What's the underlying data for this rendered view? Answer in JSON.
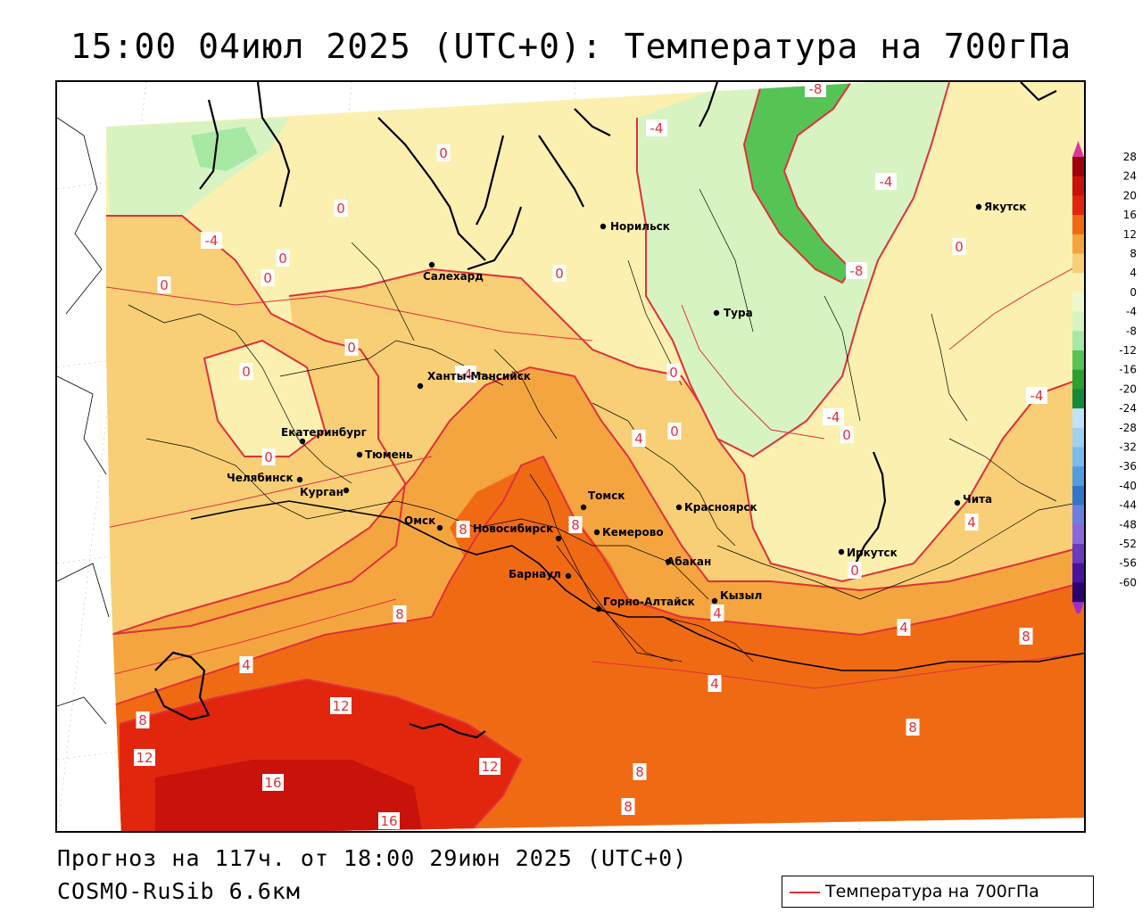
{
  "title": "15:00 04июл 2025 (UTC+0): Температура на 700гПа",
  "footer": {
    "forecast": "Прогноз на 117ч. от 18:00 29июн 2025 (UTC+0)",
    "model": "COSMO-RuSib 6.6км"
  },
  "legend": {
    "label": "Температура на 700гПа",
    "line_color": "#e0303a"
  },
  "colors": {
    "contour": "#e0303a",
    "coast": "#000000",
    "band_below_minus8": "#55c455",
    "band_minus8_minus4": "#a7e8a4",
    "band_minus4_0": "#d7f3c2",
    "band_0_4": "#fbf0b0",
    "band_4_8": "#f8cf76",
    "band_8_12": "#f5a540",
    "band_12_16": "#f06a14",
    "band_16_20": "#e2260e",
    "band_20_24": "#c8120a"
  },
  "color_scale": {
    "labels": [
      "28",
      "24",
      "20",
      "16",
      "12",
      "8",
      "4",
      "0",
      "-4",
      "-8",
      "-12",
      "-16",
      "-20",
      "-24",
      "-28",
      "-32",
      "-36",
      "-40",
      "-44",
      "-48",
      "-52",
      "-56",
      "-60"
    ],
    "colors": [
      "#a0000a",
      "#c8120a",
      "#e2260e",
      "#f06a14",
      "#f5a540",
      "#f8cf76",
      "#fbf0b0",
      "#eef8d0",
      "#d7f3c2",
      "#a7e8a4",
      "#55c455",
      "#2da02d",
      "#138a3a",
      "#bfe4f8",
      "#9ed0f2",
      "#79bcec",
      "#4f9ee0",
      "#3077cc",
      "#6c7ee0",
      "#8a6ad8",
      "#6a3ac0",
      "#4a12a0",
      "#2a0070"
    ],
    "arrow_top": "#d63a9a",
    "arrow_bottom": "#a030c8"
  },
  "cities": [
    {
      "name": "Норильск"
    },
    {
      "name": "Якутск"
    },
    {
      "name": "Салехард"
    },
    {
      "name": "Тура"
    },
    {
      "name": "Ханты-Мансийск"
    },
    {
      "name": "Екатеринбург"
    },
    {
      "name": "Тюмень"
    },
    {
      "name": "Челябинск"
    },
    {
      "name": "Курган"
    },
    {
      "name": "Омск"
    },
    {
      "name": "Томск"
    },
    {
      "name": "Новосибирск"
    },
    {
      "name": "Кемерово"
    },
    {
      "name": "Красноярск"
    },
    {
      "name": "Барнаул"
    },
    {
      "name": "Абакан"
    },
    {
      "name": "Иркутск"
    },
    {
      "name": "Чита"
    },
    {
      "name": "Горно-Алтайск"
    },
    {
      "name": "Кызыл"
    }
  ],
  "contour_labels": [
    "-8",
    "-4",
    "0",
    "0",
    "-4",
    "-8",
    "-4",
    "0",
    "0",
    "0",
    "0",
    "0",
    "0",
    "-4",
    "0",
    "0",
    "-4",
    "4",
    "0",
    "-4",
    "-8",
    "0",
    "4",
    "0",
    "0",
    "4",
    "8",
    "8",
    "4",
    "8",
    "8",
    "8",
    "4",
    "4",
    "8",
    "12",
    "12",
    "12",
    "16",
    "16",
    "8",
    "8"
  ]
}
